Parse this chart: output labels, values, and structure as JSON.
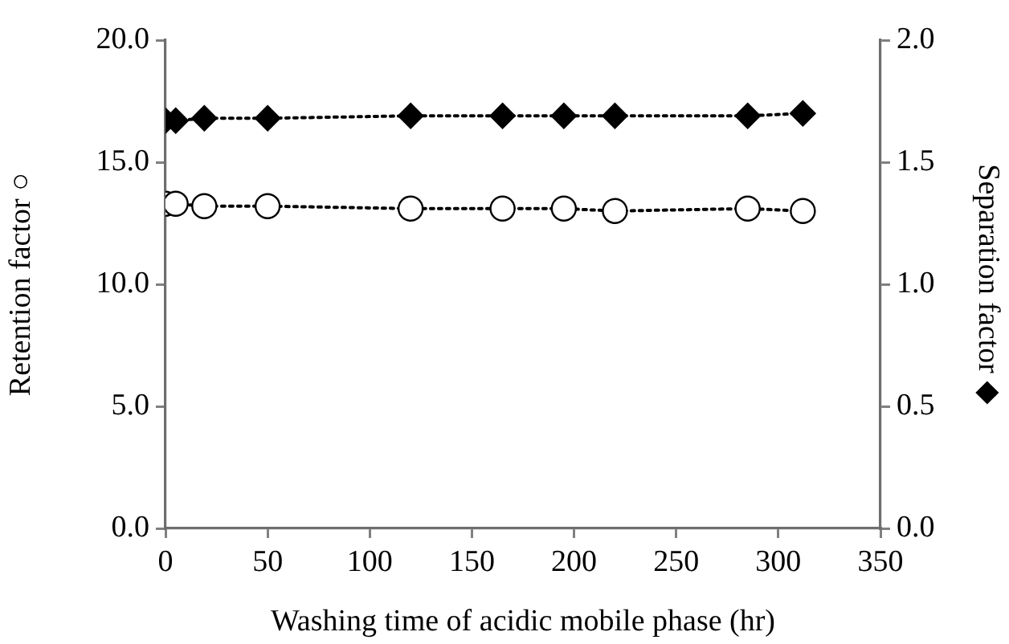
{
  "chart_data": {
    "type": "line",
    "xlabel": "Washing time of acidic mobile phase (hr)",
    "ylabel": "Retention factor ○",
    "y2label": "Separation factor ◆",
    "x": [
      0,
      5,
      19,
      50,
      120,
      165,
      195,
      220,
      285,
      312
    ],
    "series": [
      {
        "color": "#000000",
        "marker": "diamond",
        "axis": "y2",
        "values": [
          1.67,
          1.67,
          1.68,
          1.68,
          1.69,
          1.69,
          1.69,
          1.69,
          1.69,
          1.7
        ]
      },
      {
        "color": "#000000",
        "marker": "circle",
        "values": [
          13.3,
          13.3,
          13.2,
          13.2,
          13.1,
          13.1,
          13.1,
          13.0,
          13.1,
          13.0
        ]
      }
    ],
    "line_style": "dotted",
    "xlim": [
      0,
      350
    ],
    "xticks": [
      0,
      50,
      100,
      150,
      200,
      250,
      300,
      350
    ],
    "ylim": [
      0,
      20
    ],
    "yticks": [
      {
        "value": 0,
        "label": "0.0"
      },
      {
        "value": 5,
        "label": "5.0"
      },
      {
        "value": 10,
        "label": "10.0"
      },
      {
        "value": 15,
        "label": "15.0"
      },
      {
        "value": 20,
        "label": "20.0"
      }
    ],
    "y2lim": [
      0,
      2
    ],
    "y2ticks": [
      {
        "value": 0,
        "label": "0.0"
      },
      {
        "value": 0.5,
        "label": "0.5"
      },
      {
        "value": 1,
        "label": "1.0"
      },
      {
        "value": 1.5,
        "label": "1.5"
      },
      {
        "value": 2,
        "label": "2.0"
      }
    ]
  }
}
